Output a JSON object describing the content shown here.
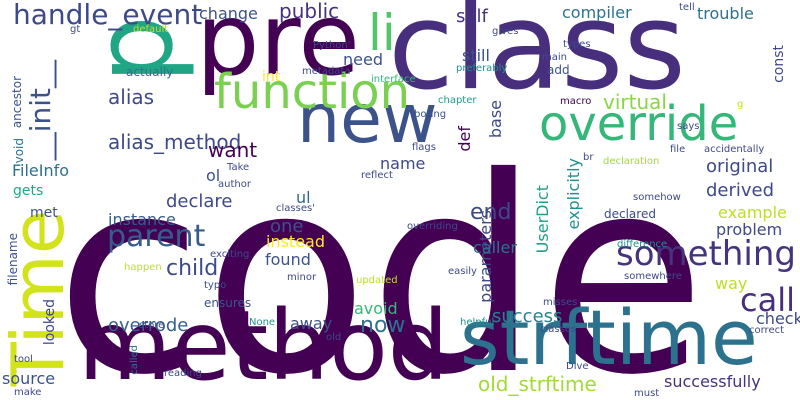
{
  "words": [
    {
      "text": "code",
      "color": "#440154"
    },
    {
      "text": "method",
      "color": "#440154"
    },
    {
      "text": "class",
      "color": "#472f7d"
    },
    {
      "text": "new",
      "color": "#3b528b"
    },
    {
      "text": "pre",
      "color": "#440154"
    },
    {
      "text": "p",
      "color": "#21a685"
    },
    {
      "text": "strftime",
      "color": "#2c728e"
    },
    {
      "text": "override",
      "color": "#35b779"
    },
    {
      "text": "function",
      "color": "#7ad151"
    },
    {
      "text": "Time",
      "color": "#d2e21b"
    },
    {
      "text": "li",
      "color": "#52c569"
    },
    {
      "text": "something",
      "color": "#46337e"
    },
    {
      "text": "parent",
      "color": "#365c8d"
    },
    {
      "text": "__init__",
      "color": "#3b528b"
    },
    {
      "text": "handle_event",
      "color": "#3e4989"
    },
    {
      "text": "alias_method",
      "color": "#3e4989"
    },
    {
      "text": "call",
      "color": "#472f7d"
    },
    {
      "text": "old_strftime",
      "color": "#a2da37"
    },
    {
      "text": "child",
      "color": "#3e4a89"
    },
    {
      "text": "end",
      "color": "#3e4989"
    },
    {
      "text": "now",
      "color": "#2c728e"
    },
    {
      "text": "alias",
      "color": "#3e4989"
    },
    {
      "text": "self",
      "color": "#46327e"
    },
    {
      "text": "virtual",
      "color": "#8bd646"
    },
    {
      "text": "public",
      "color": "#46327e"
    },
    {
      "text": "want",
      "color": "#440154"
    },
    {
      "text": "const",
      "color": "#3e4989"
    },
    {
      "text": "success",
      "color": "#26828e"
    },
    {
      "text": "successfully",
      "color": "#46327e"
    },
    {
      "text": "overrode",
      "color": "#355f8d"
    },
    {
      "text": "compiler",
      "color": "#2c728e"
    },
    {
      "text": "declare",
      "color": "#3e4989"
    },
    {
      "text": "derived",
      "color": "#3e4989"
    },
    {
      "text": "original",
      "color": "#3e4989"
    },
    {
      "text": "instance",
      "color": "#365c8d"
    },
    {
      "text": "parameters",
      "color": "#3e4989"
    },
    {
      "text": "one",
      "color": "#3b528b"
    },
    {
      "text": "found",
      "color": "#3b528b"
    },
    {
      "text": "instead",
      "color": "#fde725"
    },
    {
      "text": "still",
      "color": "#3b528b"
    },
    {
      "text": "base",
      "color": "#3e4989"
    },
    {
      "text": "def",
      "color": "#440154"
    },
    {
      "text": "check",
      "color": "#3e4989"
    },
    {
      "text": "explicitly",
      "color": "#21908d"
    },
    {
      "text": "UserDict",
      "color": "#1f9e89"
    },
    {
      "text": "trouble",
      "color": "#2c728e"
    },
    {
      "text": "change",
      "color": "#3b528b"
    },
    {
      "text": "caller",
      "color": "#2c728e"
    },
    {
      "text": "problem",
      "color": "#3e4989"
    },
    {
      "text": "example",
      "color": "#bddf26"
    },
    {
      "text": "way",
      "color": "#bddf26"
    },
    {
      "text": "name",
      "color": "#3e4989"
    },
    {
      "text": "ul",
      "color": "#31688e"
    },
    {
      "text": "FileInfo",
      "color": "#2c728e"
    },
    {
      "text": "away",
      "color": "#3b528b"
    },
    {
      "text": "avoid",
      "color": "#35b779"
    },
    {
      "text": "source",
      "color": "#3b528b"
    },
    {
      "text": "need",
      "color": "#3b528b"
    },
    {
      "text": "ol",
      "color": "#3b528b"
    },
    {
      "text": "int",
      "color": "#fde725"
    },
    {
      "text": "add",
      "color": "#3b528b"
    },
    {
      "text": "gets",
      "color": "#21a685"
    },
    {
      "text": "met",
      "color": "#3b528b"
    },
    {
      "text": "looked",
      "color": "#3e4989"
    },
    {
      "text": "void",
      "color": "#2c728e"
    },
    {
      "text": "ancestor",
      "color": "#3b528b"
    },
    {
      "text": "filename",
      "color": "#3b528b"
    },
    {
      "text": "ensures",
      "color": "#3b528b"
    },
    {
      "text": "actually",
      "color": "#2c728e"
    },
    {
      "text": "declared",
      "color": "#3e4989"
    },
    {
      "text": "metadata",
      "color": "#3e4989"
    },
    {
      "text": "macro",
      "color": "#440154"
    },
    {
      "text": "types",
      "color": "#3e4989"
    },
    {
      "text": "preferably",
      "color": "#21918c"
    },
    {
      "text": "interface",
      "color": "#35b779"
    },
    {
      "text": "Python'",
      "color": "#3e4989"
    },
    {
      "text": "flags",
      "color": "#3e4989"
    },
    {
      "text": "boring",
      "color": "#3b528b"
    },
    {
      "text": "chapter",
      "color": "#1f9e89"
    },
    {
      "text": "reflect",
      "color": "#3e4989"
    },
    {
      "text": "author",
      "color": "#3e4989"
    },
    {
      "text": "Take",
      "color": "#3e4989"
    },
    {
      "text": "declaration",
      "color": "#a2da37"
    },
    {
      "text": "file",
      "color": "#3e4989"
    },
    {
      "text": "accidentally",
      "color": "#3e4989"
    },
    {
      "text": "says",
      "color": "#3e4989"
    },
    {
      "text": "br",
      "color": "#3e4989"
    },
    {
      "text": "somehow",
      "color": "#3e4989"
    },
    {
      "text": "classes'",
      "color": "#3e4989"
    },
    {
      "text": "exciting",
      "color": "#3e4989"
    },
    {
      "text": "overriding",
      "color": "#3e4989"
    },
    {
      "text": "difference",
      "color": "#21918c"
    },
    {
      "text": "somewhere",
      "color": "#3e4989"
    },
    {
      "text": "happen",
      "color": "#bddf26"
    },
    {
      "text": "typo",
      "color": "#3e4989"
    },
    {
      "text": "minor",
      "color": "#3e4989"
    },
    {
      "text": "easily",
      "color": "#3e4989"
    },
    {
      "text": "updated",
      "color": "#bddf26"
    },
    {
      "text": "store",
      "color": "#3e4989"
    },
    {
      "text": "None",
      "color": "#21918c"
    },
    {
      "text": "helpful",
      "color": "#21918c"
    },
    {
      "text": "misses",
      "color": "#3e4989"
    },
    {
      "text": "classes",
      "color": "#3e4989"
    },
    {
      "text": "correct",
      "color": "#3e4989"
    },
    {
      "text": "old",
      "color": "#3e4989"
    },
    {
      "text": "tool",
      "color": "#3e4989"
    },
    {
      "text": "called",
      "color": "#2c728e"
    },
    {
      "text": "reading",
      "color": "#3e4989"
    },
    {
      "text": "Dive",
      "color": "#3e4989"
    },
    {
      "text": "must",
      "color": "#3e4989"
    },
    {
      "text": "make",
      "color": "#3e4989"
    },
    {
      "text": "gives",
      "color": "#3e4989"
    },
    {
      "text": "main",
      "color": "#3e4989"
    },
    {
      "text": "tell",
      "color": "#3e4989"
    },
    {
      "text": "gt",
      "color": "#3e4989"
    },
    {
      "text": "default",
      "color": "#bddf26"
    },
    {
      "text": "g",
      "color": "#bddf26"
    }
  ]
}
